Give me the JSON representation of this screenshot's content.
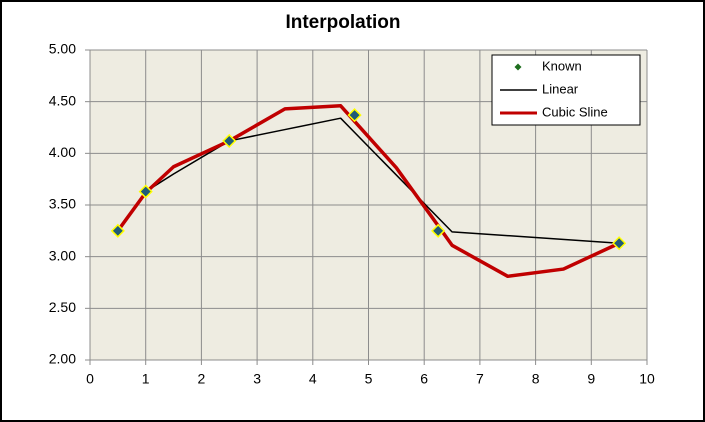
{
  "chart_data": {
    "type": "scatter",
    "title": "Interpolation",
    "xlim": [
      0,
      10
    ],
    "xticks": [
      0,
      1,
      2,
      3,
      4,
      5,
      6,
      7,
      8,
      9,
      10
    ],
    "ylim": [
      2,
      5
    ],
    "yticks": [
      {
        "value": 2,
        "label": "2.00"
      },
      {
        "value": 2.5,
        "label": "2.50"
      },
      {
        "value": 3,
        "label": "3.00"
      },
      {
        "value": 3.5,
        "label": "3.50"
      },
      {
        "value": 4,
        "label": "4.00"
      },
      {
        "value": 4.5,
        "label": "4.50"
      },
      {
        "value": 5,
        "label": "5.00"
      }
    ],
    "grid": true,
    "legend": "top-right",
    "series": [
      {
        "name": "Known",
        "style": "markers",
        "color": "#1f5b78",
        "x": [
          0.5,
          1,
          2.5,
          4.75,
          6.25,
          9.5
        ],
        "values": [
          3.25,
          3.63,
          4.12,
          4.37,
          3.25,
          3.13
        ]
      },
      {
        "name": "Linear",
        "style": "line",
        "color": "#000000",
        "x": [
          0.5,
          1,
          1.5,
          2.5,
          3.5,
          4.5,
          6.5,
          9.5
        ],
        "values": [
          3.25,
          3.63,
          3.8,
          4.12,
          4.23,
          4.34,
          3.24,
          3.13
        ]
      },
      {
        "name": "Cubic Sline",
        "style": "line",
        "color": "#c00000",
        "x": [
          0.5,
          1,
          1.5,
          2.5,
          3.5,
          4.5,
          5.5,
          6.25,
          6.5,
          7.5,
          8.5,
          9.5
        ],
        "values": [
          3.25,
          3.62,
          3.87,
          4.12,
          4.43,
          4.46,
          3.86,
          3.3,
          3.11,
          2.81,
          2.88,
          3.13
        ]
      }
    ]
  }
}
